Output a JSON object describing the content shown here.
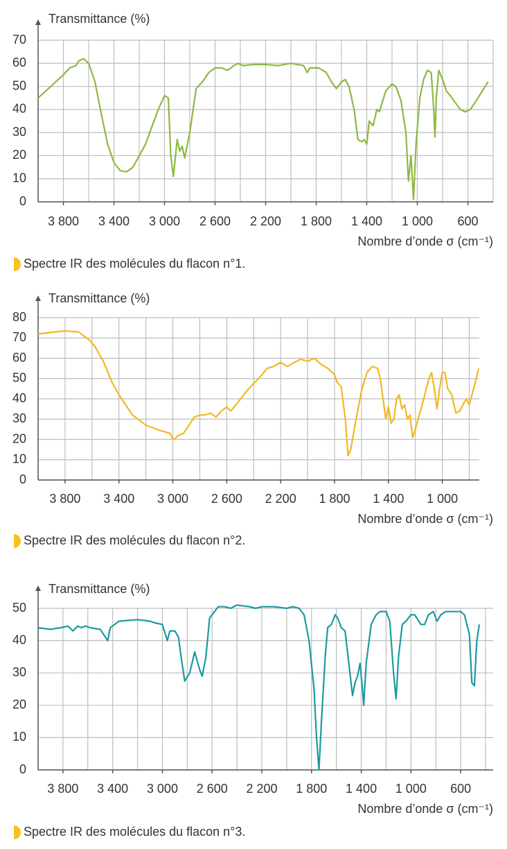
{
  "chart_data": [
    {
      "type": "line",
      "y_label": "Transmittance (%)",
      "x_label": "Nombre d’onde σ (cm⁻¹)",
      "caption": "Spectre IR des molécules du flacon n°1.",
      "color": "#8db843",
      "grid": true,
      "xlim": [
        4000,
        400
      ],
      "ylim": [
        0,
        70
      ],
      "xticks": [
        {
          "value": 3800,
          "label": "3 800"
        },
        {
          "value": 3400,
          "label": "3 400"
        },
        {
          "value": 3000,
          "label": "3 000"
        },
        {
          "value": 2600,
          "label": "2 600"
        },
        {
          "value": 2200,
          "label": "2 200"
        },
        {
          "value": 1800,
          "label": "1 800"
        },
        {
          "value": 1400,
          "label": "1 400"
        },
        {
          "value": 1000,
          "label": "1 000"
        },
        600
      ],
      "xgrid": [
        3800,
        3600,
        3400,
        3200,
        3000,
        2800,
        2600,
        2400,
        2200,
        2000,
        1800,
        1600,
        1400,
        1200,
        1000,
        800,
        600,
        400
      ],
      "yticks": [
        0,
        10,
        20,
        30,
        40,
        50,
        60,
        70
      ],
      "x": [
        4000,
        3900,
        3800,
        3750,
        3700,
        3680,
        3640,
        3600,
        3550,
        3500,
        3450,
        3400,
        3350,
        3300,
        3250,
        3150,
        3050,
        3000,
        2970,
        2950,
        2930,
        2900,
        2880,
        2860,
        2840,
        2800,
        2750,
        2700,
        2650,
        2600,
        2550,
        2500,
        2450,
        2420,
        2380,
        2300,
        2200,
        2100,
        2000,
        1900,
        1870,
        1850,
        1780,
        1720,
        1680,
        1640,
        1600,
        1570,
        1540,
        1500,
        1470,
        1440,
        1420,
        1400,
        1380,
        1350,
        1320,
        1300,
        1250,
        1200,
        1170,
        1130,
        1090,
        1070,
        1050,
        1030,
        1010,
        980,
        950,
        920,
        890,
        870,
        860,
        850,
        830,
        800,
        770,
        740,
        700,
        660,
        620,
        580,
        520,
        440
      ],
      "values": [
        45,
        50,
        55,
        58,
        59,
        61,
        62,
        60,
        52,
        38,
        25,
        17,
        13.5,
        13,
        15,
        25,
        40,
        46,
        45,
        20,
        11,
        27,
        22,
        24,
        19,
        30,
        49,
        52,
        56,
        58,
        58,
        57,
        59,
        60,
        59,
        59.5,
        59.5,
        59,
        60,
        59,
        56,
        58,
        58,
        56,
        52,
        49,
        52,
        53,
        50,
        40,
        27,
        26,
        27,
        25,
        35,
        33,
        40,
        39,
        48,
        51,
        50,
        44,
        30,
        9,
        20,
        1,
        25,
        45,
        53,
        57,
        56,
        40,
        28,
        45,
        57,
        53,
        48,
        46,
        43,
        40,
        39,
        40,
        45,
        52
      ]
    },
    {
      "type": "line",
      "y_label": "Transmittance (%)",
      "x_label": "Nombre d’onde σ (cm⁻¹)",
      "caption": "Spectre IR des molécules du flacon n°2.",
      "color": "#f2b823",
      "grid": true,
      "xlim": [
        4000,
        700
      ],
      "ylim": [
        0,
        80
      ],
      "xticks": [
        {
          "value": 3800,
          "label": "3 800"
        },
        {
          "value": 3400,
          "label": "3 400"
        },
        {
          "value": 3000,
          "label": "3 000"
        },
        {
          "value": 2600,
          "label": "2 600"
        },
        {
          "value": 2200,
          "label": "2 200"
        },
        {
          "value": 1800,
          "label": "1 800"
        },
        {
          "value": 1400,
          "label": "1 400"
        },
        {
          "value": 1000,
          "label": "1 000"
        }
      ],
      "xgrid": [
        3800,
        3600,
        3400,
        3200,
        3000,
        2800,
        2600,
        2400,
        2200,
        2000,
        1800,
        1600,
        1400,
        1200,
        1000,
        800
      ],
      "yticks": [
        0,
        10,
        20,
        30,
        40,
        50,
        60,
        70,
        80
      ],
      "x": [
        4000,
        3800,
        3700,
        3620,
        3580,
        3520,
        3450,
        3400,
        3300,
        3200,
        3100,
        3020,
        3000,
        2980,
        2960,
        2920,
        2880,
        2840,
        2800,
        2760,
        2720,
        2680,
        2640,
        2600,
        2570,
        2520,
        2450,
        2350,
        2300,
        2250,
        2200,
        2150,
        2100,
        2050,
        2000,
        1950,
        1900,
        1850,
        1800,
        1780,
        1750,
        1720,
        1700,
        1680,
        1640,
        1600,
        1560,
        1520,
        1480,
        1460,
        1440,
        1420,
        1400,
        1380,
        1360,
        1340,
        1320,
        1300,
        1280,
        1260,
        1240,
        1220,
        1200,
        1180,
        1150,
        1100,
        1080,
        1060,
        1040,
        1020,
        1000,
        980,
        960,
        930,
        900,
        870,
        840,
        820,
        800,
        780,
        760,
        730
      ],
      "values": [
        72,
        73.5,
        73,
        69,
        66,
        59,
        48,
        42,
        32,
        27,
        24.5,
        23,
        20,
        20.5,
        22,
        23,
        27,
        31,
        32,
        32,
        33,
        31,
        34,
        36,
        34,
        38,
        44,
        51,
        55,
        56,
        58,
        56,
        58,
        59.5,
        58.5,
        60,
        57,
        55,
        52,
        48,
        46,
        30,
        12,
        15,
        30,
        44,
        53,
        56,
        55,
        50,
        40,
        30,
        36,
        28,
        30,
        40,
        42,
        35,
        37,
        30,
        32,
        21,
        25,
        30,
        37,
        50,
        53,
        45,
        35,
        45,
        53,
        53,
        45,
        42,
        33,
        34,
        38,
        40,
        37,
        42,
        47,
        55
      ]
    },
    {
      "type": "line",
      "y_label": "Transmittance (%)",
      "x_label": "Nombre d’onde σ (cm⁻¹)",
      "caption": "Spectre IR des molécules du flacon n°3.",
      "color": "#1a9aa0",
      "grid": true,
      "xlim": [
        4000,
        400
      ],
      "ylim": [
        0,
        50
      ],
      "xticks": [
        {
          "value": 3800,
          "label": "3 800"
        },
        {
          "value": 3400,
          "label": "3 400"
        },
        {
          "value": 3000,
          "label": "3 000"
        },
        {
          "value": 2600,
          "label": "2 600"
        },
        {
          "value": 2200,
          "label": "2 200"
        },
        {
          "value": 1800,
          "label": "1 800"
        },
        {
          "value": 1400,
          "label": "1 400"
        },
        {
          "value": 1000,
          "label": "1 000"
        },
        600
      ],
      "xgrid": [
        3800,
        3600,
        3400,
        3200,
        3000,
        2800,
        2600,
        2400,
        2200,
        2000,
        1800,
        1600,
        1400,
        1200,
        1000,
        800,
        600,
        400
      ],
      "yticks": [
        0,
        10,
        20,
        30,
        40,
        50
      ],
      "x": [
        4000,
        3900,
        3820,
        3760,
        3720,
        3680,
        3650,
        3620,
        3580,
        3500,
        3440,
        3420,
        3350,
        3200,
        3100,
        3060,
        3000,
        2960,
        2940,
        2900,
        2870,
        2850,
        2820,
        2780,
        2740,
        2700,
        2680,
        2650,
        2620,
        2550,
        2500,
        2450,
        2400,
        2300,
        2250,
        2200,
        2100,
        2000,
        1950,
        1900,
        1860,
        1820,
        1780,
        1760,
        1740,
        1720,
        1690,
        1670,
        1640,
        1610,
        1590,
        1560,
        1530,
        1500,
        1470,
        1450,
        1430,
        1410,
        1390,
        1380,
        1360,
        1320,
        1280,
        1250,
        1200,
        1170,
        1140,
        1120,
        1100,
        1070,
        1040,
        1000,
        970,
        920,
        890,
        860,
        820,
        790,
        760,
        720,
        680,
        600,
        570,
        530,
        510,
        490,
        470,
        450
      ],
      "values": [
        44,
        43.5,
        44,
        44.5,
        43,
        44.5,
        44,
        44.5,
        44,
        43.5,
        40,
        44,
        46,
        46.5,
        46,
        45.5,
        45,
        40,
        43,
        43,
        41,
        35,
        27.5,
        30,
        36.5,
        31,
        29,
        35,
        47,
        50.5,
        50.5,
        50,
        51,
        50.5,
        50,
        50.5,
        50.5,
        50,
        50.5,
        50,
        48,
        40,
        25,
        10,
        0,
        15,
        35,
        44,
        45,
        48,
        47,
        44,
        43,
        33,
        23,
        27,
        29,
        33,
        25,
        20,
        33,
        45,
        48,
        49,
        49,
        46,
        30,
        22,
        35,
        45,
        46,
        48,
        48,
        45,
        45,
        48,
        49,
        46,
        48,
        49,
        49,
        49,
        48,
        42,
        27,
        26,
        40,
        45
      ]
    }
  ]
}
